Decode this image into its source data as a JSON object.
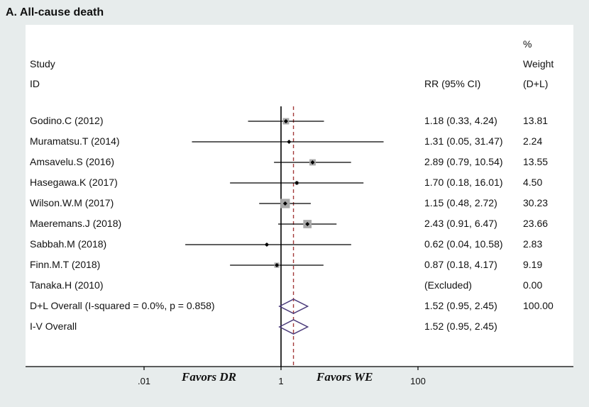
{
  "panel_title": "A. All-cause death",
  "colors": {
    "background": "#e7ecec",
    "plot_area": "#ffffff",
    "null_line": "#000000",
    "overall_line": "#a33a3a",
    "weight_box": "#a9a9a9",
    "diamond": "#4b3b7a"
  },
  "chart_data": {
    "type": "forest",
    "title": "All-cause death",
    "headers": {
      "study_top": "",
      "study_mid": "Study",
      "study_bottom": "ID",
      "rr": "RR (95% CI)",
      "weight_top": "%",
      "weight_mid": "Weight",
      "weight_bottom": "(D+L)"
    },
    "x_scale": "log",
    "x_ticks": [
      {
        "value": 0.01,
        "label": ".01"
      },
      {
        "value": 1,
        "label": "1"
      },
      {
        "value": 100,
        "label": "100"
      }
    ],
    "favors_left": "Favors DR",
    "favors_right": "Favors WE",
    "null_value": 1,
    "overall_line_value": 1.52,
    "studies": [
      {
        "id": "Godino.C (2012)",
        "rr": 1.18,
        "lo": 0.33,
        "hi": 4.24,
        "rr_text": "1.18 (0.33, 4.24)",
        "weight": "13.81",
        "w": 13.81
      },
      {
        "id": "Muramatsu.T (2014)",
        "rr": 1.31,
        "lo": 0.05,
        "hi": 31.47,
        "rr_text": "1.31 (0.05, 31.47)",
        "weight": "2.24",
        "w": 2.24
      },
      {
        "id": "Amsavelu.S (2016)",
        "rr": 2.89,
        "lo": 0.79,
        "hi": 10.54,
        "rr_text": "2.89 (0.79, 10.54)",
        "weight": "13.55",
        "w": 13.55
      },
      {
        "id": "Hasegawa.K (2017)",
        "rr": 1.7,
        "lo": 0.18,
        "hi": 16.01,
        "rr_text": "1.70 (0.18, 16.01)",
        "weight": "4.50",
        "w": 4.5
      },
      {
        "id": "Wilson.W.M (2017)",
        "rr": 1.15,
        "lo": 0.48,
        "hi": 2.72,
        "rr_text": "1.15 (0.48, 2.72)",
        "weight": "30.23",
        "w": 30.23
      },
      {
        "id": "Maeremans.J (2018)",
        "rr": 2.43,
        "lo": 0.91,
        "hi": 6.47,
        "rr_text": "2.43 (0.91, 6.47)",
        "weight": "23.66",
        "w": 23.66
      },
      {
        "id": "Sabbah.M (2018)",
        "rr": 0.62,
        "lo": 0.04,
        "hi": 10.58,
        "rr_text": "0.62 (0.04, 10.58)",
        "weight": "2.83",
        "w": 2.83
      },
      {
        "id": "Finn.M.T (2018)",
        "rr": 0.87,
        "lo": 0.18,
        "hi": 4.17,
        "rr_text": "0.87 (0.18, 4.17)",
        "weight": "9.19",
        "w": 9.19
      },
      {
        "id": "Tanaka.H (2010)",
        "rr": null,
        "lo": null,
        "hi": null,
        "rr_text": "(Excluded)",
        "weight": "0.00",
        "w": 0
      }
    ],
    "overall": [
      {
        "id": "D+L Overall  (I-squared = 0.0%, p = 0.858)",
        "rr": 1.52,
        "lo": 0.95,
        "hi": 2.45,
        "rr_text": "1.52 (0.95, 2.45)",
        "weight": "100.00"
      },
      {
        "id": "I-V Overall",
        "rr": 1.52,
        "lo": 0.95,
        "hi": 2.45,
        "rr_text": "1.52 (0.95, 2.45)",
        "weight": ""
      }
    ]
  }
}
